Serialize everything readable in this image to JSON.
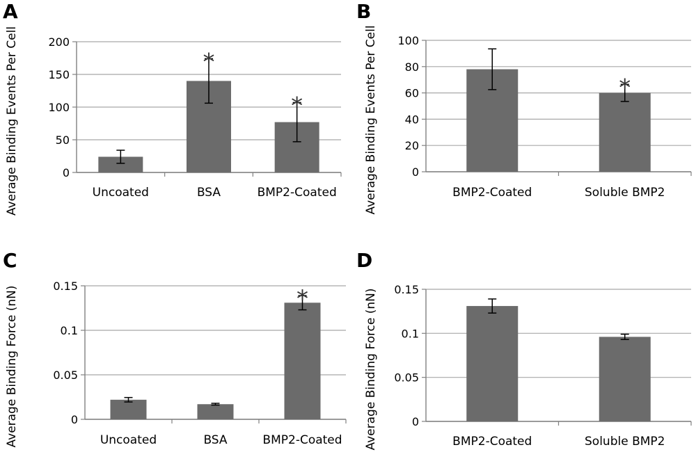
{
  "chart_data": [
    {
      "panel": "A",
      "type": "bar",
      "title": "",
      "xlabel": "",
      "ylabel": "Average Binding Events Per Cell",
      "ylim": [
        0,
        200
      ],
      "yticks": [
        "0",
        "50",
        "100",
        "150",
        "200"
      ],
      "grid": true,
      "categories": [
        "Uncoated",
        "BSA",
        "BMP2-Coated"
      ],
      "values": [
        24,
        140,
        77
      ],
      "errors": [
        10,
        34,
        30
      ],
      "significance": [
        "",
        "*",
        "*"
      ],
      "bar_color": "#6b6b6b"
    },
    {
      "panel": "B",
      "type": "bar",
      "title": "",
      "xlabel": "",
      "ylabel": "Average Binding Events Per Cell",
      "ylim": [
        0,
        100
      ],
      "yticks": [
        "0",
        "20",
        "40",
        "60",
        "80",
        "100"
      ],
      "grid": true,
      "categories": [
        "BMP2-Coated",
        "Soluble BMP2"
      ],
      "values": [
        78,
        60
      ],
      "errors": [
        15.5,
        6.5
      ],
      "significance": [
        "",
        "*"
      ],
      "bar_color": "#6b6b6b"
    },
    {
      "panel": "C",
      "type": "bar",
      "title": "",
      "xlabel": "",
      "ylabel": "Average Binding Force (nN)",
      "ylim": [
        0,
        0.15
      ],
      "yticks": [
        "0",
        "0.05",
        "0.1",
        "0.15"
      ],
      "grid": true,
      "categories": [
        "Uncoated",
        "BSA",
        "BMP2-Coated"
      ],
      "values": [
        0.022,
        0.017,
        0.131
      ],
      "errors": [
        0.0025,
        0.001,
        0.008
      ],
      "significance": [
        "",
        "",
        "*"
      ],
      "bar_color": "#6b6b6b"
    },
    {
      "panel": "D",
      "type": "bar",
      "title": "",
      "xlabel": "",
      "ylabel": "Average Binding Force (nN)",
      "ylim": [
        0,
        0.15
      ],
      "yticks": [
        "0",
        "0.05",
        "0.1",
        "0.15"
      ],
      "grid": true,
      "categories": [
        "BMP2-Coated",
        "Soluble BMP2"
      ],
      "values": [
        0.131,
        0.096
      ],
      "errors": [
        0.008,
        0.003
      ],
      "significance": [
        "",
        ""
      ],
      "bar_color": "#6b6b6b"
    }
  ]
}
